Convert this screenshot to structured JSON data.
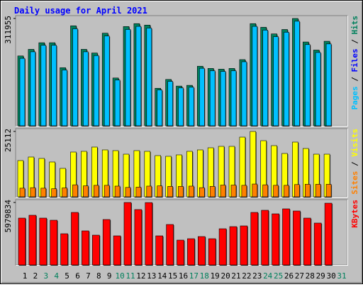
{
  "title": "Daily usage for April 2021",
  "chart_data": [
    {
      "type": "bar",
      "ylim": [
        0,
        311955
      ],
      "yticks": [
        311955
      ],
      "side_label": [
        {
          "text": "Pages",
          "color": "#00c0ff"
        },
        {
          "text": " / ",
          "color": "#000000"
        },
        {
          "text": "Files",
          "color": "#0000ff"
        },
        {
          "text": " / ",
          "color": "#000000"
        },
        {
          "text": "Hits",
          "color": "#00805c"
        }
      ],
      "series": [
        {
          "name": "Hits",
          "color": "#00805c",
          "values": [
            202987,
            222216,
            241446,
            241446,
            168799,
            290587,
            222216,
            211531,
            269221,
            138887,
            288451,
            297000,
            292730,
            108973,
            134613,
            115382,
            117519,
            173073,
            166663,
            164526,
            166663,
            192304,
            297000,
            286316,
            267088,
            279908,
            311955,
            243584,
            220080,
            245721,
            null
          ]
        },
        {
          "name": "Pages",
          "color": "#00c0ff",
          "values": [
            196000,
            215000,
            234000,
            234000,
            162000,
            282000,
            215000,
            204000,
            261000,
            133000,
            280000,
            289000,
            284000,
            104000,
            129000,
            110000,
            112000,
            167000,
            160000,
            158000,
            160000,
            186000,
            289000,
            278000,
            259000,
            272000,
            304000,
            236000,
            213000,
            238000,
            null
          ]
        }
      ]
    },
    {
      "type": "bar",
      "ylim": [
        0,
        25112
      ],
      "yticks": [
        25112
      ],
      "side_label": [
        {
          "text": "Sites",
          "color": "#ff8000"
        },
        {
          "text": " / ",
          "color": "#000000"
        },
        {
          "text": "Visits",
          "color": "#ffff00"
        }
      ],
      "series": [
        {
          "name": "Visits",
          "color": "#ffff00",
          "values": [
            13921,
            15286,
            14740,
            13375,
            10918,
            17197,
            17469,
            19107,
            18015,
            17742,
            16378,
            17742,
            17469,
            15832,
            15559,
            16105,
            17469,
            18015,
            18834,
            19380,
            19380,
            22929,
            25112,
            21564,
            19653,
            16650,
            21018,
            18561,
            16378,
            16378,
            null
          ]
        },
        {
          "name": "Sites",
          "color": "#ff8000",
          "values": [
            3300,
            3500,
            3300,
            3100,
            3400,
            4600,
            4200,
            4400,
            4400,
            4100,
            3600,
            3700,
            4100,
            4200,
            4000,
            4000,
            4100,
            3500,
            4000,
            4500,
            4500,
            4400,
            4900,
            4600,
            4400,
            4400,
            4700,
            4800,
            4800,
            4800,
            null
          ]
        }
      ]
    },
    {
      "type": "bar",
      "ylim": [
        0,
        5979834
      ],
      "yticks": [
        5979834
      ],
      "side_label": [
        {
          "text": "KBytes",
          "color": "#ff0000"
        }
      ],
      "categories": [
        1,
        2,
        3,
        4,
        5,
        6,
        7,
        8,
        9,
        10,
        11,
        12,
        13,
        14,
        15,
        16,
        17,
        18,
        19,
        20,
        21,
        22,
        23,
        24,
        25,
        26,
        27,
        28,
        29,
        30,
        31
      ],
      "category_colors": [
        "#000000",
        "#000000",
        "#00805c",
        "#00805c",
        "#000000",
        "#000000",
        "#000000",
        "#000000",
        "#000000",
        "#00805c",
        "#00805c",
        "#000000",
        "#000000",
        "#000000",
        "#000000",
        "#000000",
        "#00805c",
        "#00805c",
        "#000000",
        "#000000",
        "#000000",
        "#000000",
        "#000000",
        "#00805c",
        "#00805c",
        "#000000",
        "#000000",
        "#000000",
        "#000000",
        "#000000",
        "#00805c"
      ],
      "series": [
        {
          "name": "KBytes",
          "color": "#ff0000",
          "values": [
            4484898,
            4756710,
            4484898,
            4281039,
            2989932,
            5028522,
            3261744,
            2854026,
            4348992,
            2786073,
            5979834,
            5300334,
            5970000,
            2786073,
            3873321,
            2378355,
            2514261,
            2718120,
            2514261,
            3465603,
            3669462,
            3737415,
            5028522,
            5232381,
            4892616,
            5368287,
            5164428,
            4484898,
            4009227,
            5911911,
            null
          ]
        }
      ]
    }
  ]
}
